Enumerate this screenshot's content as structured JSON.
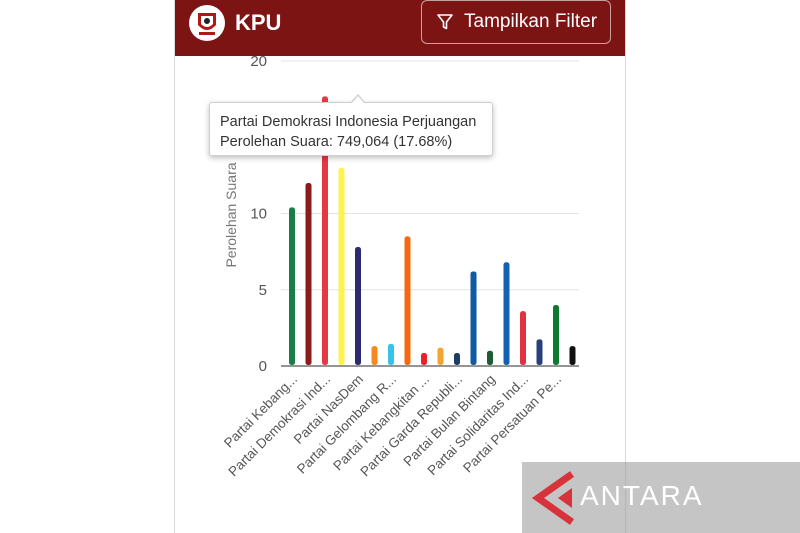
{
  "header": {
    "title": "KPU",
    "filter_label": "Tampilkan Filter",
    "bg_color": "#7d1414"
  },
  "tooltip": {
    "party": "Partai Demokrasi Indonesia Perjuangan",
    "value_text": "Perolehan Suara: 749,064 (17.68%)"
  },
  "watermark": {
    "text": "ANTARA"
  },
  "chart_data": {
    "type": "bar",
    "ylabel": "Perolehan Suara",
    "ylim": [
      0,
      20
    ],
    "yticks": [
      0,
      5,
      10,
      20
    ],
    "grid": true,
    "category_labels": [
      "Partai Kebang...",
      "Partai Demokrasi Ind...",
      "Partai NasDem",
      "Partai Gelombang R...",
      "Partai Kebangkitan ...",
      "Partai Garda Republi...",
      "Partai Bulan Bintang",
      "Partai Solidaritas Ind...",
      "Partai Persatuan Pe..."
    ],
    "values": [
      10.4,
      12.0,
      17.68,
      13.0,
      7.8,
      1.3,
      1.45,
      8.5,
      0.85,
      1.2,
      0.85,
      6.2,
      1.0,
      6.8,
      3.6,
      1.75,
      4.0,
      1.3
    ],
    "colors": [
      "#1a7d48",
      "#8b1a1a",
      "#e53945",
      "#fff34d",
      "#2d2a6e",
      "#f6891f",
      "#35c3ea",
      "#f7670b",
      "#e8222b",
      "#f4a531",
      "#1e3d63",
      "#0e5aa6",
      "#1f5c35",
      "#1560b0",
      "#e2323f",
      "#27407a",
      "#0e7a2e",
      "#111111"
    ]
  }
}
